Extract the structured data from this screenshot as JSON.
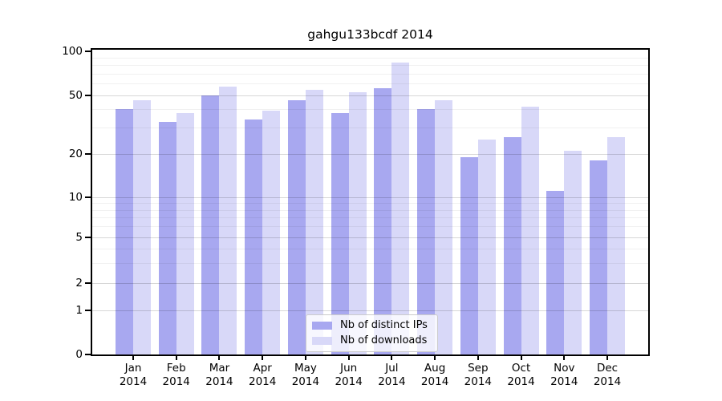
{
  "title": "gahgu133bcdf 2014",
  "legend": {
    "entries": [
      {
        "label": "Nb of distinct IPs",
        "color": "#a8a8f0"
      },
      {
        "label": "Nb of downloads",
        "color": "#d8d8f8"
      }
    ]
  },
  "chart_data": {
    "type": "bar",
    "title": "gahgu133bcdf 2014",
    "categories": [
      "Jan 2014",
      "Feb 2014",
      "Mar 2014",
      "Apr 2014",
      "May 2014",
      "Jun 2014",
      "Jul 2014",
      "Aug 2014",
      "Sep 2014",
      "Oct 2014",
      "Nov 2014",
      "Dec 2014"
    ],
    "x_tick_month": [
      "Jan",
      "Feb",
      "Mar",
      "Apr",
      "May",
      "Jun",
      "Jul",
      "Aug",
      "Sep",
      "Oct",
      "Nov",
      "Dec"
    ],
    "x_tick_year": [
      "2014",
      "2014",
      "2014",
      "2014",
      "2014",
      "2014",
      "2014",
      "2014",
      "2014",
      "2014",
      "2014",
      "2014"
    ],
    "series": [
      {
        "name": "Nb of distinct IPs",
        "color": "#a8a8f0",
        "values": [
          40,
          33,
          50,
          34,
          46,
          38,
          56,
          40,
          19,
          26,
          11,
          18
        ]
      },
      {
        "name": "Nb of downloads",
        "color": "#d8d8f8",
        "values": [
          46,
          38,
          57,
          39,
          54,
          52,
          83,
          46,
          25,
          42,
          21,
          26
        ]
      }
    ],
    "y_axis": {
      "scale": "log",
      "ylim": [
        0,
        100
      ],
      "major_ticks": [
        100,
        50,
        20,
        10,
        5,
        2,
        1,
        0
      ],
      "major_tick_labels": [
        "100",
        "50",
        "20",
        "10",
        "5",
        "2",
        "1",
        "0"
      ],
      "minor_gridlines": [
        3,
        4,
        6,
        7,
        8,
        9,
        30,
        40,
        60,
        70,
        80,
        90
      ]
    },
    "legend_position": "lower center",
    "grid": true
  }
}
